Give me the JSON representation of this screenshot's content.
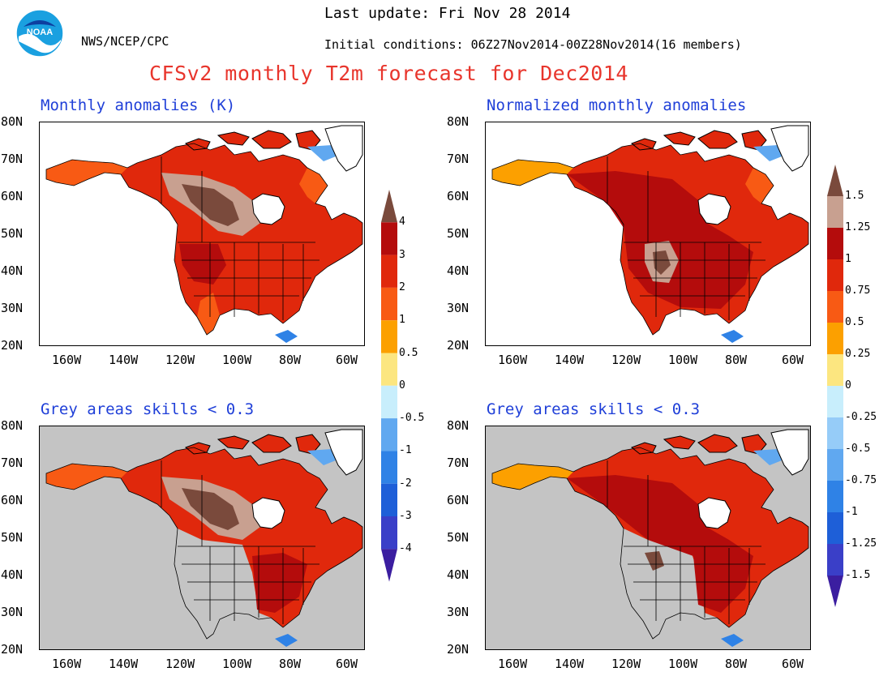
{
  "header": {
    "org": "NWS/NCEP/CPC",
    "last_update": "Last update: Fri Nov 28 2014",
    "initial_conditions": "Initial conditions: 06Z27Nov2014-00Z28Nov2014(16 members)",
    "title": "CFSv2 monthly T2m forecast for Dec2014",
    "logo_text": "NOAA"
  },
  "panels": [
    {
      "title": "Monthly anomalies (K)",
      "masked": false
    },
    {
      "title": "Normalized monthly anomalies",
      "masked": false
    },
    {
      "title": "Grey areas skills < 0.3",
      "masked": true
    },
    {
      "title": "Grey areas skills < 0.3",
      "masked": true
    }
  ],
  "axes": {
    "lat_labels": [
      "80N",
      "70N",
      "60N",
      "50N",
      "40N",
      "30N",
      "20N"
    ],
    "lon_labels": [
      "160W",
      "140W",
      "120W",
      "100W",
      "80W",
      "60W"
    ]
  },
  "colorbars": [
    {
      "labels": [
        "4",
        "3",
        "2",
        "1",
        "0.5",
        "0",
        "-0.5",
        "-1",
        "-2",
        "-3",
        "-4"
      ]
    },
    {
      "labels": [
        "1.5",
        "1.25",
        "1",
        "0.75",
        "0.5",
        "0.25",
        "0",
        "-0.25",
        "-0.5",
        "-0.75",
        "-1",
        "-1.25",
        "-1.5"
      ]
    }
  ],
  "colors": {
    "scale": [
      "#3b1ea0",
      "#3a3fc8",
      "#1e5fd8",
      "#2f82e6",
      "#60a8f0",
      "#96ccf8",
      "#c8eefc",
      "#fce680",
      "#fca000",
      "#f85a14",
      "#e0280c",
      "#b40c0c",
      "#c8a090",
      "#7a4a3c"
    ],
    "title_red": "#e8352c",
    "panel_title_blue": "#1f3fd8",
    "mask_grey": "#c4c4c4"
  }
}
